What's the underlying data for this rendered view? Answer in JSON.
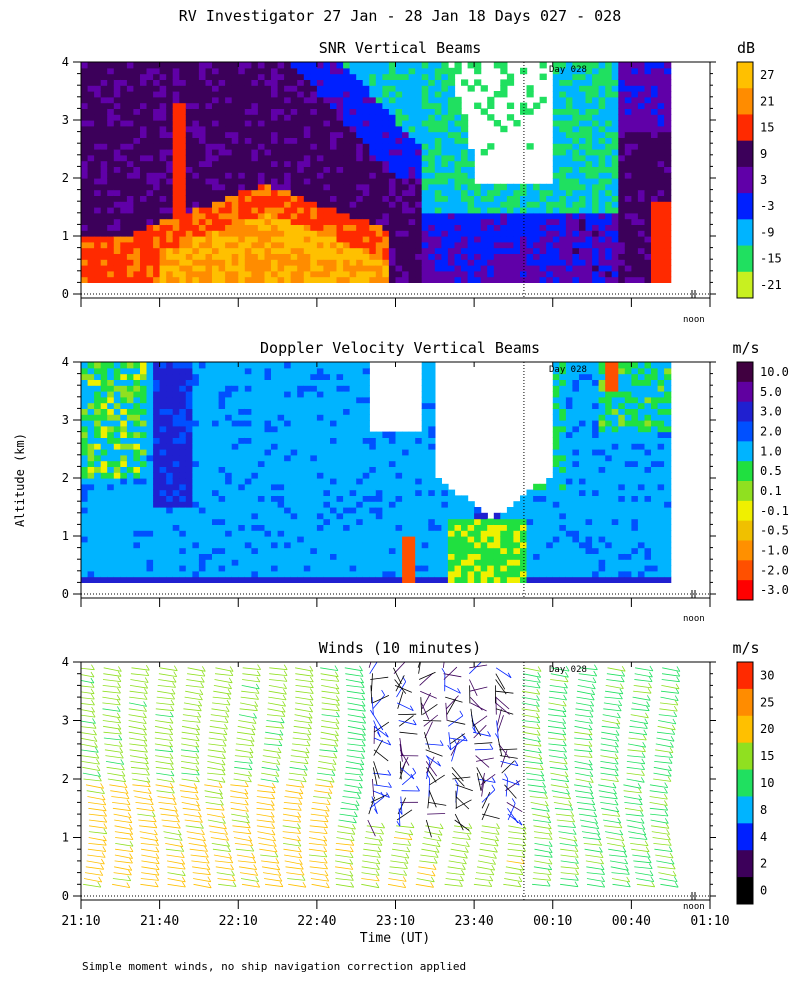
{
  "figure": {
    "title": "RV Investigator  27 Jan - 28 Jan 18 Days 027 - 028",
    "ylabel": "Altitude (km)",
    "xlabel": "Time (UT)",
    "footnote": "Simple moment winds, no ship navigation correction applied",
    "xticks": [
      "21:10",
      "21:40",
      "22:10",
      "22:40",
      "23:10",
      "23:40",
      "00:10",
      "00:40",
      "01:10"
    ],
    "yticks": [
      "0",
      "1",
      "2",
      "3",
      "4"
    ],
    "day_marker_label": "Day 028",
    "noon_label": "noon"
  },
  "chart_data": [
    {
      "type": "heatmap",
      "title": "SNR Vertical Beams",
      "units": "dB",
      "x_range": [
        "21:10",
        "01:10"
      ],
      "ylim": [
        0,
        4
      ],
      "day_boundary": "23:59",
      "colorbar": {
        "labels": [
          "27",
          "21",
          "15",
          "9",
          "3",
          "-3",
          "-9",
          "-15",
          "-21"
        ],
        "colors": [
          "#ffc000",
          "#ff8c00",
          "#ff2a00",
          "#3c005a",
          "#6000a8",
          "#0020ff",
          "#00b4ff",
          "#20e060",
          "#c8f020"
        ]
      },
      "regions_summary": [
        {
          "x": [
            "21:10",
            "23:10"
          ],
          "y_km": [
            0.2,
            1.0
          ],
          "dB": 21
        },
        {
          "x": [
            "21:50",
            "22:40"
          ],
          "y_km": [
            1.0,
            1.9
          ],
          "dB": 15
        },
        {
          "x": [
            "21:10",
            "23:20"
          ],
          "y_km": [
            1.5,
            4.0
          ],
          "dB": 6
        },
        {
          "x": [
            "23:25",
            "00:10"
          ],
          "y_km": [
            2.0,
            4.0
          ],
          "dB": -30
        },
        {
          "x": [
            "00:10",
            "00:55"
          ],
          "y_km": [
            0.2,
            4.0
          ],
          "dB": 6
        },
        {
          "x": [
            "00:45",
            "00:55"
          ],
          "y_km": [
            0.3,
            1.5
          ],
          "dB": 15
        }
      ]
    },
    {
      "type": "heatmap",
      "title": "Doppler Velocity Vertical Beams",
      "units": "m/s",
      "x_range": [
        "21:10",
        "01:10"
      ],
      "ylim": [
        0,
        4
      ],
      "day_boundary": "23:59",
      "colorbar": {
        "labels": [
          "10.0",
          "5.0",
          "3.0",
          "2.0",
          "1.0",
          "0.5",
          "0.1",
          "-0.1",
          "-0.5",
          "-1.0",
          "-2.0",
          "-3.0"
        ],
        "colors": [
          "#400040",
          "#6000a0",
          "#2020d0",
          "#0050ff",
          "#00b4ff",
          "#20e040",
          "#90e020",
          "#f0f000",
          "#f0c000",
          "#ff9000",
          "#ff5000",
          "#ff0000"
        ]
      },
      "regions_summary": [
        {
          "x": [
            "21:10",
            "23:20"
          ],
          "y_km": [
            0.2,
            4.0
          ],
          "m_s": 1.0
        },
        {
          "x": [
            "21:30",
            "22:00"
          ],
          "y_km": [
            2.0,
            4.0
          ],
          "m_s": 3.0
        },
        {
          "x": [
            "23:20",
            "00:10"
          ],
          "y_km": [
            1.3,
            4.0
          ],
          "m_s": "no data"
        },
        {
          "x": [
            "00:10",
            "00:55"
          ],
          "y_km": [
            0.2,
            4.0
          ],
          "m_s": 1.0
        },
        {
          "x": [
            "00:40",
            "00:45"
          ],
          "y_km": [
            3.5,
            4.0
          ],
          "m_s": -2.0
        }
      ]
    },
    {
      "type": "barbs",
      "title": "Winds (10 minutes)",
      "units": "m/s",
      "x_range": [
        "21:10",
        "01:10"
      ],
      "ylim": [
        0,
        4
      ],
      "day_boundary": "23:59",
      "colorbar": {
        "labels": [
          "30",
          "25",
          "20",
          "15",
          "10",
          "8",
          "4",
          "2",
          "0"
        ],
        "colors": [
          "#ff2a00",
          "#ff8c00",
          "#ffc000",
          "#90e020",
          "#20e060",
          "#00b4ff",
          "#0020ff",
          "#3c005a",
          "#000000"
        ]
      },
      "profile_times": [
        "21:10",
        "21:20",
        "21:30",
        "21:40",
        "21:50",
        "22:00",
        "22:10",
        "22:20",
        "22:30",
        "22:40",
        "22:50",
        "23:00",
        "23:10",
        "23:20",
        "23:30",
        "23:40",
        "23:50",
        "00:00",
        "00:10",
        "00:20",
        "00:30",
        "00:40",
        "00:50"
      ],
      "speed_summary": [
        {
          "x": [
            "21:10",
            "22:40"
          ],
          "y_km": [
            0.2,
            2.0
          ],
          "m_s": 22
        },
        {
          "x": [
            "21:10",
            "22:40"
          ],
          "y_km": [
            2.0,
            4.0
          ],
          "m_s": 17
        },
        {
          "x": [
            "22:40",
            "23:50"
          ],
          "y_km": [
            0.2,
            1.2
          ],
          "m_s": 18
        },
        {
          "x": [
            "23:00",
            "23:50"
          ],
          "y_km": [
            1.2,
            4.0
          ],
          "m_s": 3
        },
        {
          "x": [
            "00:00",
            "00:50"
          ],
          "y_km": [
            0.2,
            4.0
          ],
          "m_s": 14
        }
      ]
    }
  ]
}
